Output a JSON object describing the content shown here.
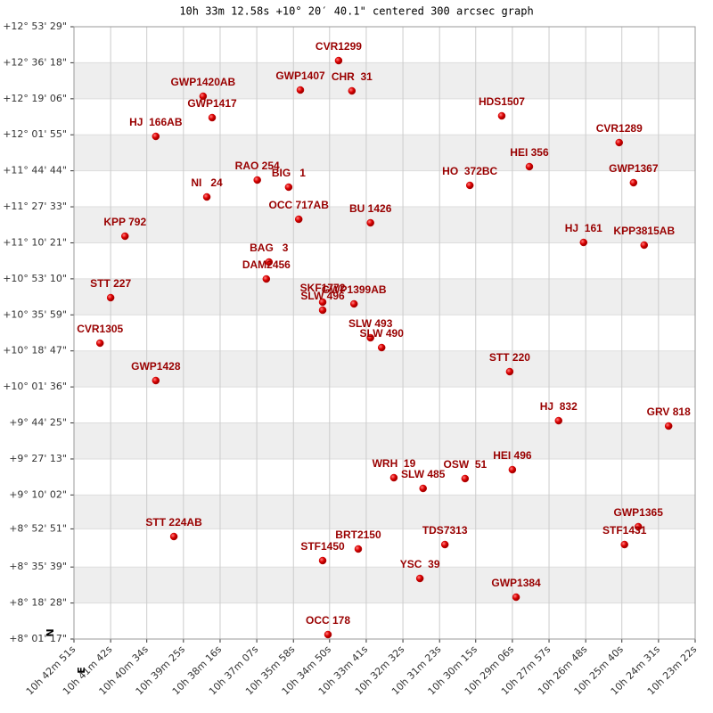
{
  "chart_data": {
    "type": "scatter",
    "title": "10h 33m 12.58s +10° 20′ 40.1\" centered 300 arcsec graph",
    "y_label": "N",
    "x_label": "E",
    "xlim": [
      38571,
      37402
    ],
    "ylim": [
      28877,
      46409
    ],
    "xticks": [
      {
        "value": 38571,
        "label": "10h 42m 51s"
      },
      {
        "value": 38502,
        "label": "10h 41m 42s"
      },
      {
        "value": 38434,
        "label": "10h 40m 34s"
      },
      {
        "value": 38365,
        "label": "10h 39m 25s"
      },
      {
        "value": 38296,
        "label": "10h 38m 16s"
      },
      {
        "value": 38227,
        "label": "10h 37m 07s"
      },
      {
        "value": 38158,
        "label": "10h 35m 58s"
      },
      {
        "value": 38090,
        "label": "10h 34m 50s"
      },
      {
        "value": 38021,
        "label": "10h 33m 41s"
      },
      {
        "value": 37952,
        "label": "10h 32m 32s"
      },
      {
        "value": 37883,
        "label": "10h 31m 23s"
      },
      {
        "value": 37815,
        "label": "10h 30m 15s"
      },
      {
        "value": 37746,
        "label": "10h 29m 06s"
      },
      {
        "value": 37677,
        "label": "10h 27m 57s"
      },
      {
        "value": 37608,
        "label": "10h 26m 48s"
      },
      {
        "value": 37540,
        "label": "10h 25m 40s"
      },
      {
        "value": 37471,
        "label": "10h 24m 31s"
      },
      {
        "value": 37402,
        "label": "10h 23m 22s"
      }
    ],
    "yticks": [
      {
        "value": 46409,
        "label": "+12° 53' 29\""
      },
      {
        "value": 45378,
        "label": "+12° 36' 18\""
      },
      {
        "value": 44346,
        "label": "+12° 19' 06\""
      },
      {
        "value": 43315,
        "label": "+12° 01' 55\""
      },
      {
        "value": 42284,
        "label": "+11° 44' 44\""
      },
      {
        "value": 41253,
        "label": "+11° 27' 33\""
      },
      {
        "value": 40221,
        "label": "+11° 10' 21\""
      },
      {
        "value": 39190,
        "label": "+10° 53' 10\""
      },
      {
        "value": 38159,
        "label": "+10° 35' 59\""
      },
      {
        "value": 37127,
        "label": "+10° 18' 47\""
      },
      {
        "value": 36096,
        "label": "+10° 01' 36\""
      },
      {
        "value": 35065,
        "label": "+9° 44' 25\""
      },
      {
        "value": 34033,
        "label": "+9° 27' 13\""
      },
      {
        "value": 33002,
        "label": "+9° 10' 02\""
      },
      {
        "value": 32031,
        "label": "+8° 52' 51\""
      },
      {
        "value": 30939,
        "label": "+8° 35' 39\""
      },
      {
        "value": 29908,
        "label": "+8° 18' 28\""
      },
      {
        "value": 28877,
        "label": "+8° 01' 17\""
      }
    ],
    "grid": true,
    "series": [
      {
        "color": "#cc0000",
        "labels": [
          "CVR1299",
          "GWP1407",
          "CHR  31",
          "GWP1420AB",
          "GWP1417",
          "HJ  166AB",
          "HDS1507",
          "CVR1289",
          "HEI 356",
          "RAO 254",
          "BIG   1",
          "HO  372BC",
          "GWP1367",
          "NI   24",
          "OCC 717AB",
          "BU 1426",
          "KPP 792",
          "HJ  161",
          "KPP3815AB",
          "BAG   3",
          "DAM2456",
          "STT 227",
          "SKF1772",
          "GWP1399AB",
          "SLW 496",
          "CVR1305",
          "SLW 493",
          "SLW 490",
          "STT 220",
          "GWP1428",
          "HJ  832",
          "GRV 818",
          "WRH  19",
          "SLW 485",
          "OSW  51",
          "HEI 496",
          "STT 224AB",
          "GWP1365",
          "STF1431",
          "TDS7313",
          "STF1450",
          "BRT2150",
          "YSC  39",
          "GWP1384",
          "OCC 178"
        ],
        "x": [
          38073,
          38145,
          38048,
          38328,
          38311,
          38417,
          37766,
          37545,
          37714,
          38226,
          38167,
          37826,
          37518,
          38321,
          38148,
          38013,
          38475,
          37612,
          37498,
          38204,
          38209,
          38502,
          38103,
          38044,
          38103,
          38522,
          38013,
          37992,
          37751,
          38417,
          37659,
          37452,
          37969,
          37914,
          37835,
          37746,
          38383,
          37509,
          37535,
          37873,
          38103,
          38036,
          37920,
          37739,
          38093
        ],
        "y": [
          45439,
          44597,
          44572,
          44419,
          43806,
          43270,
          43857,
          43092,
          42403,
          42020,
          41816,
          41867,
          41943,
          41535,
          40897,
          40795,
          40412,
          40233,
          40157,
          39672,
          39187,
          38651,
          38524,
          38473,
          38294,
          37350,
          37503,
          37222,
          36533,
          36278,
          35129,
          34976,
          33496,
          33190,
          33471,
          33726,
          31812,
          32093,
          31582,
          31582,
          31123,
          31455,
          30612,
          30076,
          29005
        ]
      }
    ]
  }
}
